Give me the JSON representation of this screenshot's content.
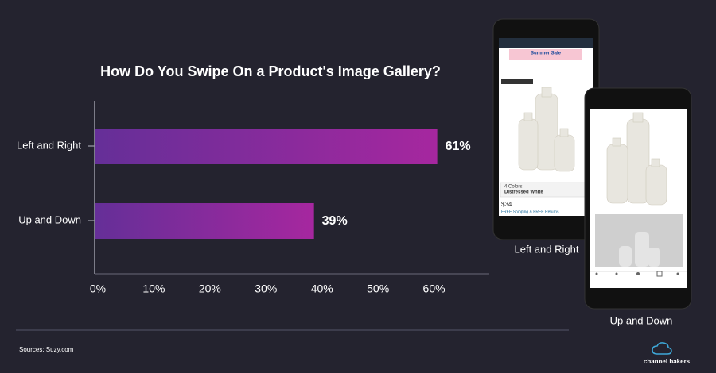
{
  "chart_data": {
    "type": "hbar",
    "title": "How Do You Swipe On a Product's Image Gallery?",
    "categories": [
      "Left and Right",
      "Up and Down"
    ],
    "values": [
      61,
      39
    ],
    "value_labels": [
      "61%",
      "39%"
    ],
    "gradient": [
      "#652f98",
      "#a6279f"
    ],
    "xlim": [
      0,
      70
    ],
    "xticks": [
      {
        "value": 0,
        "label": "0%"
      },
      {
        "value": 10,
        "label": "10%"
      },
      {
        "value": 20,
        "label": "20%"
      },
      {
        "value": 30,
        "label": "30%"
      },
      {
        "value": 40,
        "label": "40%"
      },
      {
        "value": 50,
        "label": "50%"
      },
      {
        "value": 60,
        "label": "60%"
      }
    ],
    "source": "Sources: Suzy.com"
  },
  "phones": [
    {
      "caption": "Left and Right",
      "sale": "Summer Sale",
      "price": "$34",
      "colors": "4 Colors:",
      "color_name": "Distressed White",
      "shipping": "FREE Shipping & FREE Returns"
    },
    {
      "caption": "Up and Down"
    }
  ],
  "brand": "channel bakers"
}
